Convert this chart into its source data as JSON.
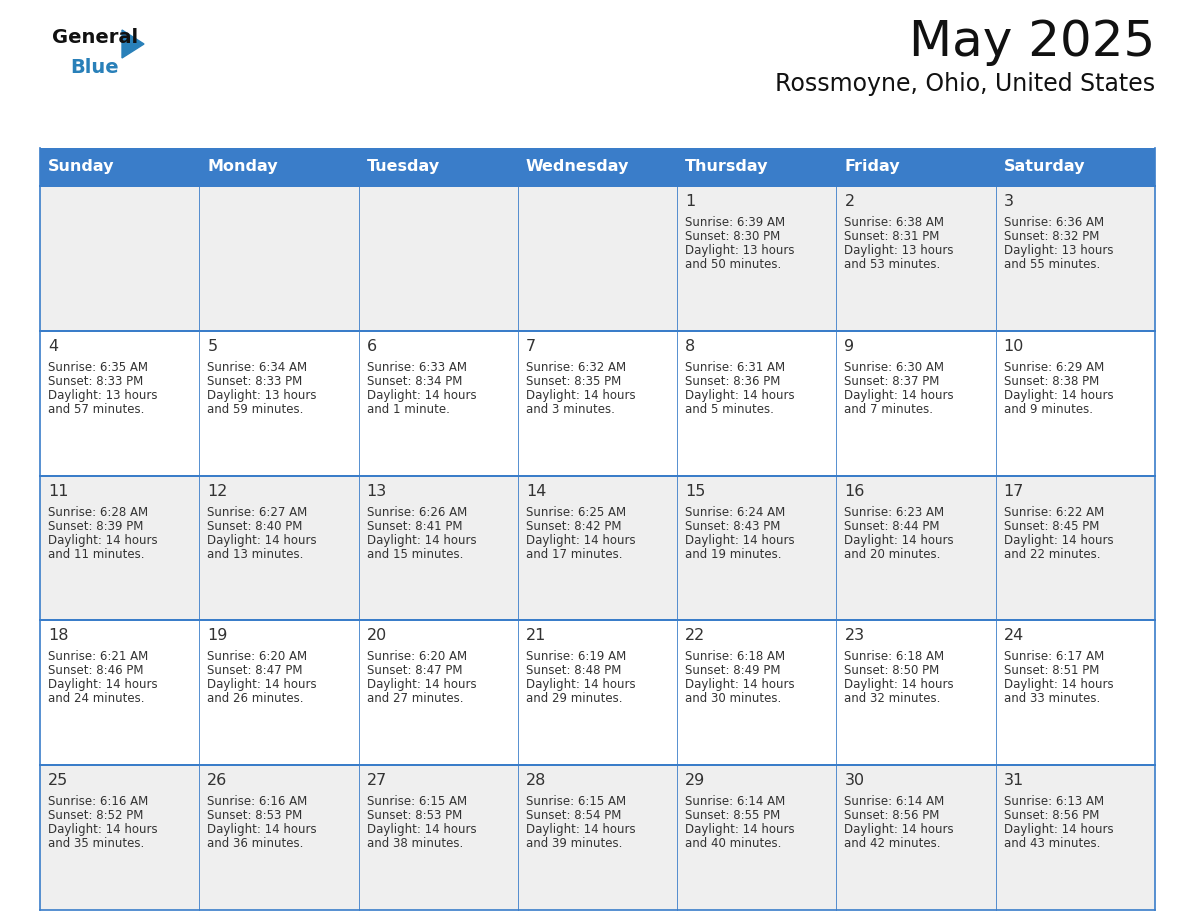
{
  "title": "May 2025",
  "subtitle": "Rossmoyne, Ohio, United States",
  "header_bg_color": "#3A7DC9",
  "header_text_color": "#FFFFFF",
  "day_names": [
    "Sunday",
    "Monday",
    "Tuesday",
    "Wednesday",
    "Thursday",
    "Friday",
    "Saturday"
  ],
  "cell_bg_odd": "#EFEFEF",
  "cell_bg_even": "#FFFFFF",
  "cell_border_color": "#3A7DC9",
  "cell_text_color": "#333333",
  "title_color": "#111111",
  "logo_general_color": "#111111",
  "logo_blue_color": "#2980B9",
  "calendar": [
    [
      null,
      null,
      null,
      null,
      {
        "day": 1,
        "sunrise": "6:39 AM",
        "sunset": "8:30 PM",
        "daylight_l1": "Daylight: 13 hours",
        "daylight_l2": "and 50 minutes."
      },
      {
        "day": 2,
        "sunrise": "6:38 AM",
        "sunset": "8:31 PM",
        "daylight_l1": "Daylight: 13 hours",
        "daylight_l2": "and 53 minutes."
      },
      {
        "day": 3,
        "sunrise": "6:36 AM",
        "sunset": "8:32 PM",
        "daylight_l1": "Daylight: 13 hours",
        "daylight_l2": "and 55 minutes."
      }
    ],
    [
      {
        "day": 4,
        "sunrise": "6:35 AM",
        "sunset": "8:33 PM",
        "daylight_l1": "Daylight: 13 hours",
        "daylight_l2": "and 57 minutes."
      },
      {
        "day": 5,
        "sunrise": "6:34 AM",
        "sunset": "8:33 PM",
        "daylight_l1": "Daylight: 13 hours",
        "daylight_l2": "and 59 minutes."
      },
      {
        "day": 6,
        "sunrise": "6:33 AM",
        "sunset": "8:34 PM",
        "daylight_l1": "Daylight: 14 hours",
        "daylight_l2": "and 1 minute."
      },
      {
        "day": 7,
        "sunrise": "6:32 AM",
        "sunset": "8:35 PM",
        "daylight_l1": "Daylight: 14 hours",
        "daylight_l2": "and 3 minutes."
      },
      {
        "day": 8,
        "sunrise": "6:31 AM",
        "sunset": "8:36 PM",
        "daylight_l1": "Daylight: 14 hours",
        "daylight_l2": "and 5 minutes."
      },
      {
        "day": 9,
        "sunrise": "6:30 AM",
        "sunset": "8:37 PM",
        "daylight_l1": "Daylight: 14 hours",
        "daylight_l2": "and 7 minutes."
      },
      {
        "day": 10,
        "sunrise": "6:29 AM",
        "sunset": "8:38 PM",
        "daylight_l1": "Daylight: 14 hours",
        "daylight_l2": "and 9 minutes."
      }
    ],
    [
      {
        "day": 11,
        "sunrise": "6:28 AM",
        "sunset": "8:39 PM",
        "daylight_l1": "Daylight: 14 hours",
        "daylight_l2": "and 11 minutes."
      },
      {
        "day": 12,
        "sunrise": "6:27 AM",
        "sunset": "8:40 PM",
        "daylight_l1": "Daylight: 14 hours",
        "daylight_l2": "and 13 minutes."
      },
      {
        "day": 13,
        "sunrise": "6:26 AM",
        "sunset": "8:41 PM",
        "daylight_l1": "Daylight: 14 hours",
        "daylight_l2": "and 15 minutes."
      },
      {
        "day": 14,
        "sunrise": "6:25 AM",
        "sunset": "8:42 PM",
        "daylight_l1": "Daylight: 14 hours",
        "daylight_l2": "and 17 minutes."
      },
      {
        "day": 15,
        "sunrise": "6:24 AM",
        "sunset": "8:43 PM",
        "daylight_l1": "Daylight: 14 hours",
        "daylight_l2": "and 19 minutes."
      },
      {
        "day": 16,
        "sunrise": "6:23 AM",
        "sunset": "8:44 PM",
        "daylight_l1": "Daylight: 14 hours",
        "daylight_l2": "and 20 minutes."
      },
      {
        "day": 17,
        "sunrise": "6:22 AM",
        "sunset": "8:45 PM",
        "daylight_l1": "Daylight: 14 hours",
        "daylight_l2": "and 22 minutes."
      }
    ],
    [
      {
        "day": 18,
        "sunrise": "6:21 AM",
        "sunset": "8:46 PM",
        "daylight_l1": "Daylight: 14 hours",
        "daylight_l2": "and 24 minutes."
      },
      {
        "day": 19,
        "sunrise": "6:20 AM",
        "sunset": "8:47 PM",
        "daylight_l1": "Daylight: 14 hours",
        "daylight_l2": "and 26 minutes."
      },
      {
        "day": 20,
        "sunrise": "6:20 AM",
        "sunset": "8:47 PM",
        "daylight_l1": "Daylight: 14 hours",
        "daylight_l2": "and 27 minutes."
      },
      {
        "day": 21,
        "sunrise": "6:19 AM",
        "sunset": "8:48 PM",
        "daylight_l1": "Daylight: 14 hours",
        "daylight_l2": "and 29 minutes."
      },
      {
        "day": 22,
        "sunrise": "6:18 AM",
        "sunset": "8:49 PM",
        "daylight_l1": "Daylight: 14 hours",
        "daylight_l2": "and 30 minutes."
      },
      {
        "day": 23,
        "sunrise": "6:18 AM",
        "sunset": "8:50 PM",
        "daylight_l1": "Daylight: 14 hours",
        "daylight_l2": "and 32 minutes."
      },
      {
        "day": 24,
        "sunrise": "6:17 AM",
        "sunset": "8:51 PM",
        "daylight_l1": "Daylight: 14 hours",
        "daylight_l2": "and 33 minutes."
      }
    ],
    [
      {
        "day": 25,
        "sunrise": "6:16 AM",
        "sunset": "8:52 PM",
        "daylight_l1": "Daylight: 14 hours",
        "daylight_l2": "and 35 minutes."
      },
      {
        "day": 26,
        "sunrise": "6:16 AM",
        "sunset": "8:53 PM",
        "daylight_l1": "Daylight: 14 hours",
        "daylight_l2": "and 36 minutes."
      },
      {
        "day": 27,
        "sunrise": "6:15 AM",
        "sunset": "8:53 PM",
        "daylight_l1": "Daylight: 14 hours",
        "daylight_l2": "and 38 minutes."
      },
      {
        "day": 28,
        "sunrise": "6:15 AM",
        "sunset": "8:54 PM",
        "daylight_l1": "Daylight: 14 hours",
        "daylight_l2": "and 39 minutes."
      },
      {
        "day": 29,
        "sunrise": "6:14 AM",
        "sunset": "8:55 PM",
        "daylight_l1": "Daylight: 14 hours",
        "daylight_l2": "and 40 minutes."
      },
      {
        "day": 30,
        "sunrise": "6:14 AM",
        "sunset": "8:56 PM",
        "daylight_l1": "Daylight: 14 hours",
        "daylight_l2": "and 42 minutes."
      },
      {
        "day": 31,
        "sunrise": "6:13 AM",
        "sunset": "8:56 PM",
        "daylight_l1": "Daylight: 14 hours",
        "daylight_l2": "and 43 minutes."
      }
    ]
  ]
}
